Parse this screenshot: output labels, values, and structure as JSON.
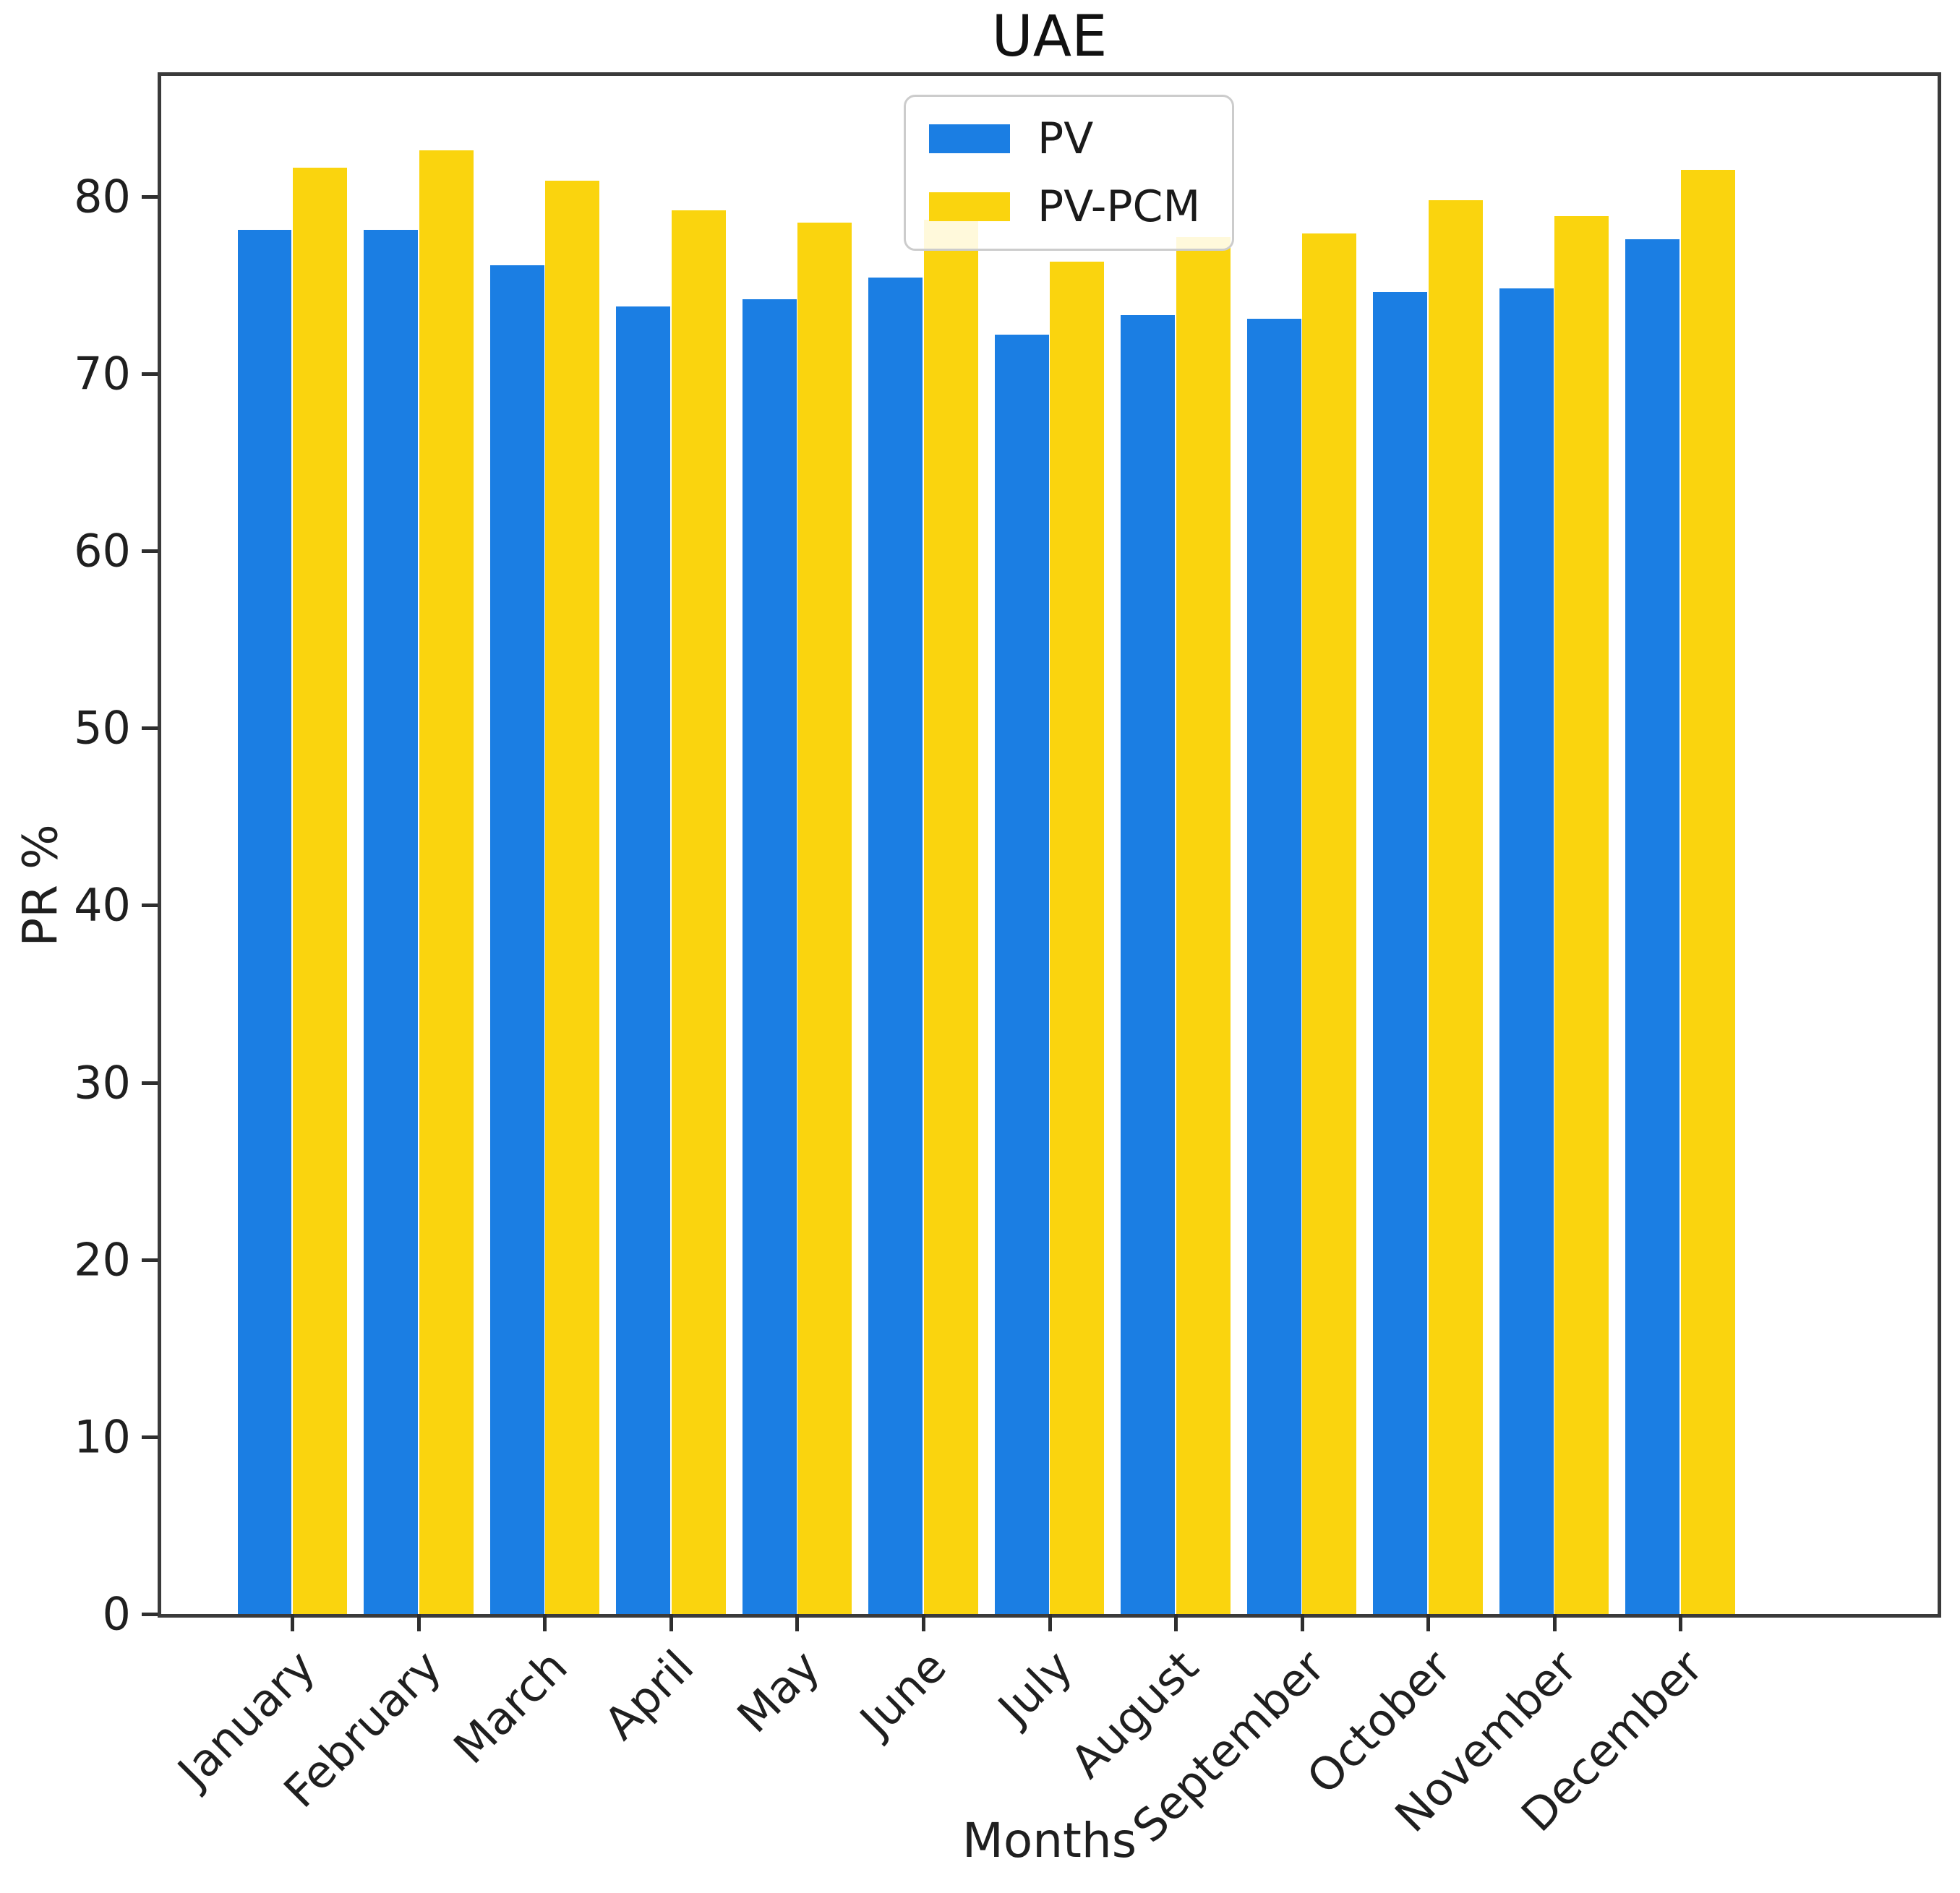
{
  "title": "UAE",
  "axes": {
    "x_label": "Months",
    "y_label": "PR %"
  },
  "colors": {
    "pv": "#1b7ee3",
    "pv_pcm": "#fad40e",
    "spine": "#3a3a3a",
    "text": "#1f1f1f"
  },
  "chart_data": {
    "type": "bar",
    "title": "UAE",
    "xlabel": "Months",
    "ylabel": "PR %",
    "ylim": [
      0,
      86.8
    ],
    "yticks": [
      0,
      10,
      20,
      30,
      40,
      50,
      60,
      70,
      80
    ],
    "grid": false,
    "legend_position": "upper center",
    "categories": [
      "January",
      "February",
      "March",
      "April",
      "May",
      "June",
      "July",
      "August",
      "September",
      "October",
      "November",
      "December"
    ],
    "series": [
      {
        "name": "PV",
        "color": "#1b7ee3",
        "values": [
          78.1,
          78.1,
          76.1,
          73.8,
          74.2,
          75.4,
          72.2,
          73.3,
          73.1,
          74.6,
          74.8,
          77.6
        ]
      },
      {
        "name": "PV-PCM",
        "color": "#fad40e",
        "values": [
          81.6,
          82.6,
          80.9,
          79.2,
          78.5,
          78.7,
          76.3,
          77.7,
          77.9,
          79.8,
          78.9,
          81.5
        ]
      }
    ]
  }
}
